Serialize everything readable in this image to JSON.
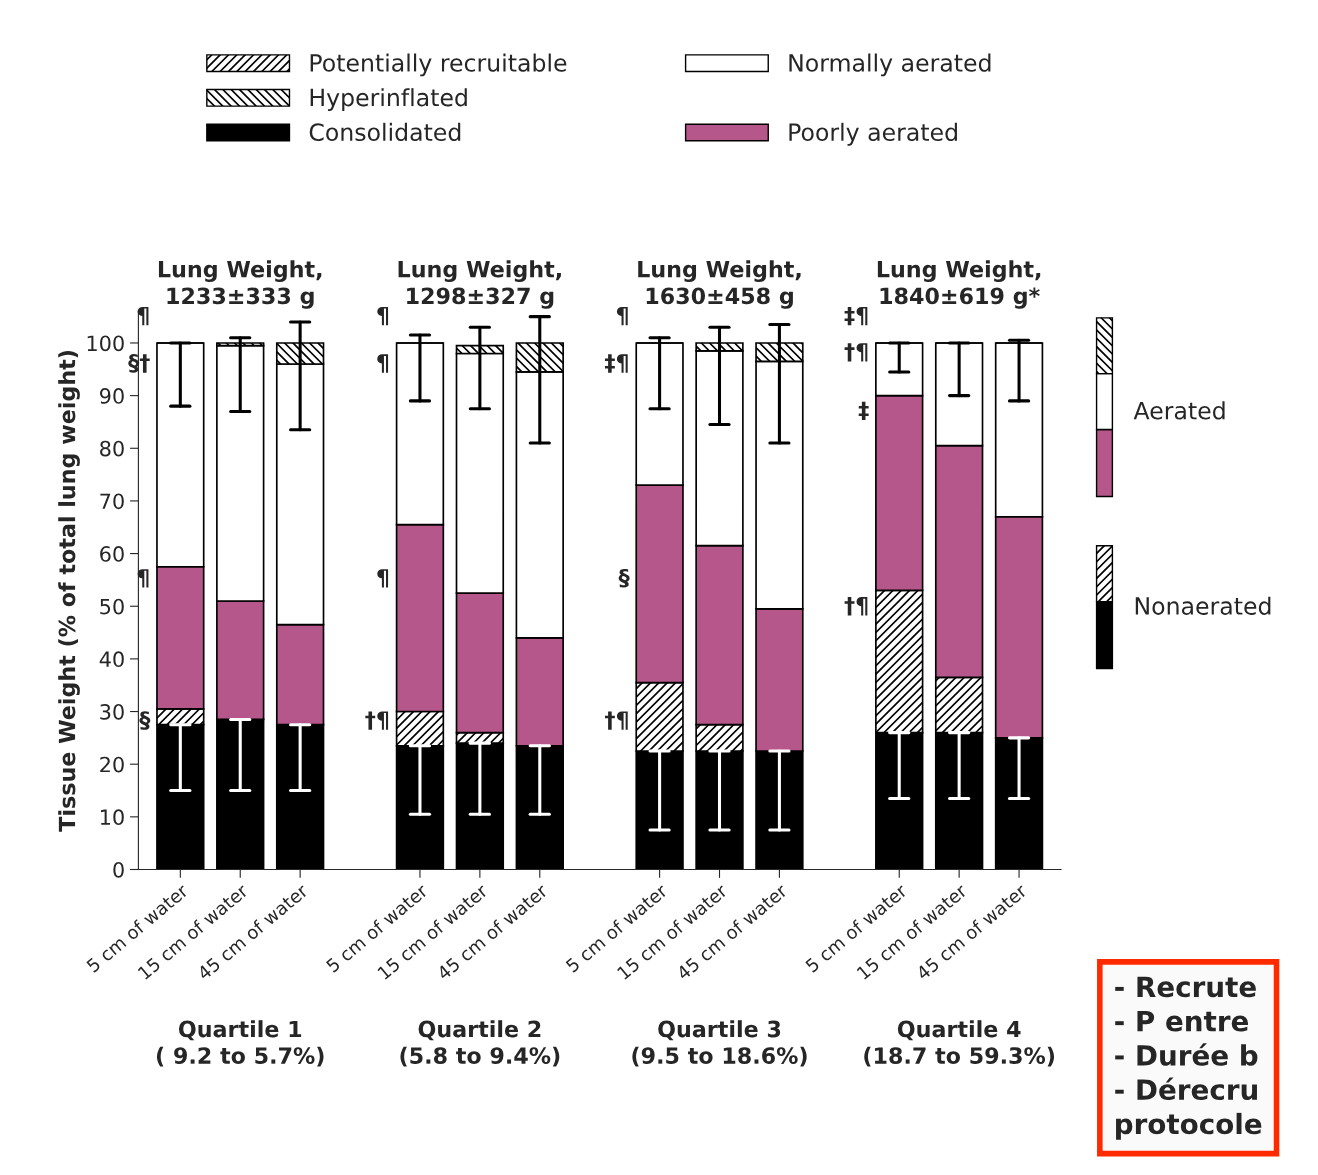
{
  "chart_data": {
    "type": "bar",
    "stacked": true,
    "ylabel": "Tissue Weight (% of total lung weight)",
    "categories": [
      "5 cm of water",
      "15 cm of water",
      "45 cm of water",
      null,
      "5 cm of water",
      "15 cm of water",
      "45 cm of water",
      null,
      "5 cm of water",
      "15 cm of water",
      "45 cm of water",
      null,
      "5 cm of water",
      "15 cm of water",
      "45 cm of water"
    ],
    "series": [
      {
        "name": "Consolidated",
        "color": "#000000",
        "values": [
          27.5,
          28.5,
          27.5,
          null,
          23.5,
          24,
          23.5,
          null,
          22.5,
          22.5,
          22.5,
          null,
          26,
          26,
          25
        ],
        "errors": [
          [
            15,
            27.5
          ],
          [
            15,
            28.5
          ],
          [
            15,
            27.5
          ],
          null,
          [
            10.5,
            23.5
          ],
          [
            10.5,
            24
          ],
          [
            10.5,
            23.5
          ],
          null,
          [
            7.5,
            22.5
          ],
          [
            7.5,
            22.5
          ],
          [
            7.5,
            22.5
          ],
          null,
          [
            13.5,
            26
          ],
          [
            13.5,
            26
          ],
          [
            13.5,
            25
          ]
        ]
      },
      {
        "name": "Potentially recruitable",
        "color": "#000000",
        "values": [
          3,
          null,
          null,
          null,
          6.5,
          2,
          null,
          null,
          13,
          5,
          null,
          null,
          27,
          10.5,
          null
        ]
      },
      {
        "name": "Poorly aerated",
        "color": "#b5578a",
        "values": [
          27,
          22.5,
          19,
          null,
          35.5,
          26.5,
          20.5,
          null,
          37.5,
          34,
          27,
          null,
          37,
          44,
          42
        ]
      },
      {
        "name": "Normally aerated",
        "color": "#ffffff",
        "values": [
          42.5,
          48.5,
          49.5,
          null,
          34.5,
          45.5,
          50.5,
          null,
          27,
          37,
          47,
          null,
          10,
          19.5,
          33
        ]
      },
      {
        "name": "Hyperinflated",
        "color": "#000000",
        "values": [
          0,
          0.5,
          4,
          null,
          0,
          1.5,
          5.5,
          null,
          0,
          1.5,
          3.5,
          null,
          0,
          0,
          0
        ],
        "errors": [
          [
            88,
            100
          ],
          [
            87,
            101
          ],
          [
            83.5,
            104
          ],
          null,
          [
            89,
            101.5
          ],
          [
            87.5,
            103
          ],
          [
            81,
            105
          ],
          null,
          [
            87.5,
            101
          ],
          [
            84.5,
            103
          ],
          [
            81,
            103.5
          ],
          null,
          [
            94.5,
            100
          ],
          [
            90,
            100
          ],
          [
            89,
            100.5
          ]
        ]
      }
    ],
    "ylim": [
      0,
      106
    ],
    "yticks": [
      0,
      10,
      20,
      30,
      40,
      50,
      60,
      70,
      80,
      90,
      100
    ],
    "legend": "top",
    "grid": false,
    "annotations": [
      "Lung Weight,\n1233±333 g",
      "Lung Weight,\n1298±327 g",
      "Lung Weight,\n1630±458 g",
      "Lung Weight,\n1840±619 g*",
      "Quartile 1\n( 9.2 to 5.7%)",
      "Quartile 2\n(5.8 to 9.4%)",
      "Quartile 3\n(9.5 to 18.6%)",
      "Quartile 4\n(18.7 to 59.3%)",
      "Aerated",
      "Nonaerated",
      "- Recrute\n- P entre\n- Durée b\n- Dérecru\nprotocole",
      "¶",
      "§†",
      "¶",
      "§",
      "¶",
      "¶",
      "¶",
      "†¶",
      "¶",
      "‡¶",
      "§",
      "†¶",
      "‡¶",
      "†¶",
      "‡",
      "†¶"
    ]
  }
}
